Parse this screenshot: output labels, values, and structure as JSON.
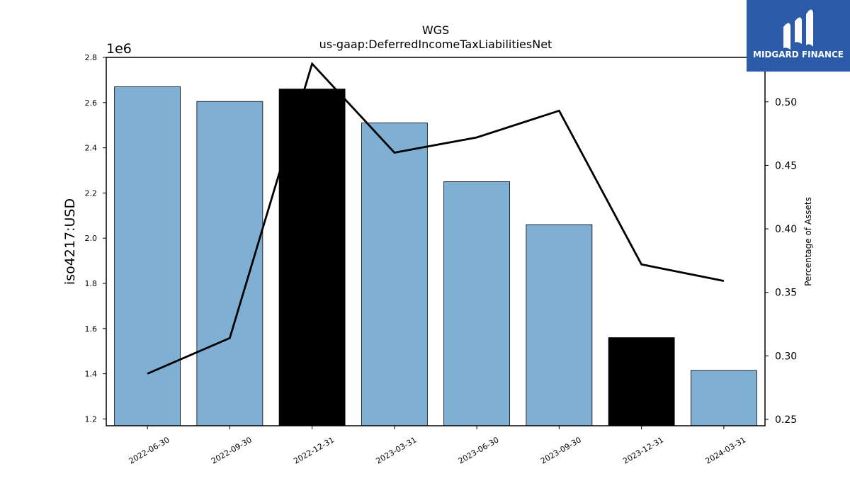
{
  "chart_data": {
    "type": "bar",
    "title": "WGS",
    "subtitle": "us-gaap:DeferredIncomeTaxLiabilitiesNet",
    "ylabel": "iso4217:USD",
    "y_offset_label": "1e6",
    "y2label": "Percentage of Assets",
    "categories": [
      "2022-06-30",
      "2022-09-30",
      "2022-12-31",
      "2023-03-31",
      "2023-06-30",
      "2023-09-30",
      "2023-12-31",
      "2024-03-31"
    ],
    "values": [
      2670000,
      2605000,
      2660000,
      2510000,
      2250000,
      2060000,
      1560000,
      1415000
    ],
    "bar_colors": [
      "#7fafd3",
      "#7fafd3",
      "#000000",
      "#7fafd3",
      "#7fafd3",
      "#7fafd3",
      "#000000",
      "#7fafd3"
    ],
    "line_series": {
      "values": [
        0.286,
        0.314,
        0.53,
        0.46,
        0.472,
        0.493,
        0.372,
        0.359
      ],
      "color": "#000000"
    },
    "ylim": [
      1170000,
      2800000
    ],
    "y_ticks": [
      1.2,
      1.4,
      1.6,
      1.8,
      2.0,
      2.2,
      2.4,
      2.6,
      2.8
    ],
    "y_tick_labels": [
      "1.2",
      "1.4",
      "1.6",
      "1.8",
      "2.0",
      "2.2",
      "2.4",
      "2.6",
      "2.8"
    ],
    "y2lim": [
      0.245,
      0.535
    ],
    "y2_ticks": [
      0.25,
      0.3,
      0.35,
      0.4,
      0.45,
      0.5
    ],
    "y2_tick_labels": [
      "0.25",
      "0.30",
      "0.35",
      "0.40",
      "0.45",
      "0.50"
    ],
    "grid": false
  },
  "logo": {
    "text": "MIDGARD FINANCE",
    "bg_color": "#2b5aa8"
  }
}
